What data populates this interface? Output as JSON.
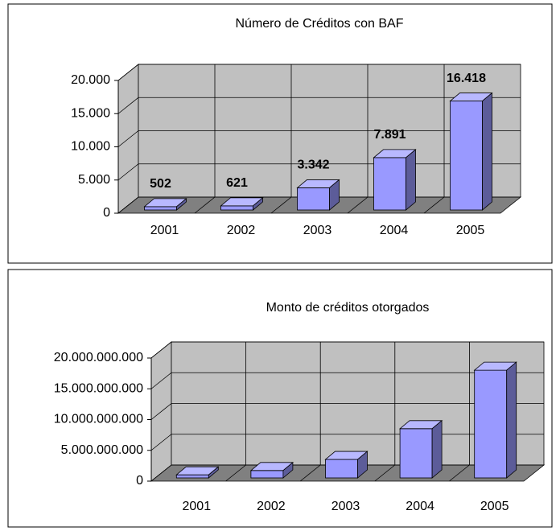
{
  "chart_data": [
    {
      "type": "bar3d",
      "title": "Número de Créditos con BAF",
      "categories": [
        "2001",
        "2002",
        "2003",
        "2004",
        "2005"
      ],
      "values": [
        502,
        621,
        3342,
        7891,
        16418
      ],
      "value_labels": [
        "502",
        "621",
        "3.342",
        "7.891",
        "16.418"
      ],
      "color": "#9999ff",
      "ylim": [
        0,
        20000
      ],
      "yticks": [
        0,
        {
          "value": 5000,
          "label": "5.000"
        },
        {
          "value": 10000,
          "label": "10.000"
        },
        {
          "value": 15000,
          "label": "15.000"
        },
        {
          "value": 20000,
          "label": "20.000"
        }
      ],
      "grid": true
    },
    {
      "type": "bar3d",
      "title": "Monto de créditos otorgados",
      "categories": [
        "2001",
        "2002",
        "2003",
        "2004",
        "2005"
      ],
      "values": [
        500000000,
        1200000000,
        3000000000,
        8000000000,
        17500000000
      ],
      "color": "#9999ff",
      "ylim": [
        0,
        20000000000
      ],
      "yticks": [
        0,
        {
          "value": 5000000000,
          "label": "5.000.000.000"
        },
        {
          "value": 10000000000,
          "label": "10.000.000.000"
        },
        {
          "value": 15000000000,
          "label": "15.000.000.000"
        },
        {
          "value": 20000000000,
          "label": "20.000.000.000"
        }
      ],
      "grid": true
    }
  ]
}
